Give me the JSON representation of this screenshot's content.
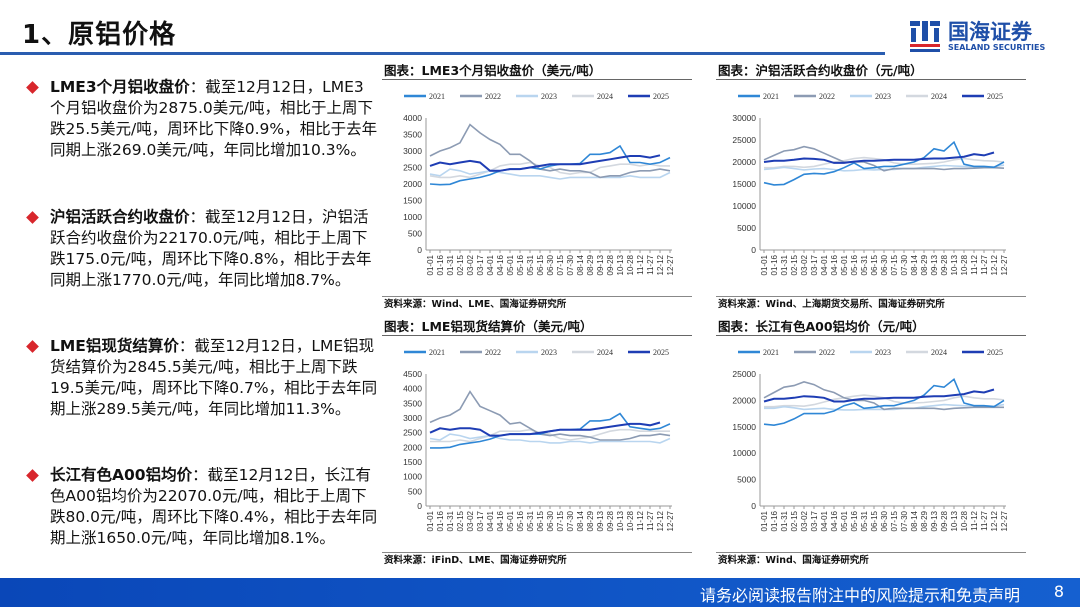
{
  "header": {
    "title": "1、原铝价格",
    "logo_cn": "国海证券",
    "logo_en": "SEALAND SECURITIES"
  },
  "blocks": [
    {
      "label": "LME3个月铝收盘价",
      "text": "：截至12月12日，LME3个月铝收盘价为2875.0美元/吨，相比于上周下跌25.5美元/吨，周环比下降0.9%，相比于去年同期上涨269.0美元/吨，年同比增加10.3%。"
    },
    {
      "label": "沪铝活跃合约收盘价",
      "text": "：截至12月12日，沪铝活跃合约收盘价为22170.0元/吨，相比于上周下跌175.0元/吨，周环比下降0.8%，相比于去年同期上涨1770.0元/吨，年同比增加8.7%。"
    },
    {
      "label": "LME铝现货结算价",
      "text": "：截至12月12日，LME铝现货结算价为2845.5美元/吨，相比于上周下跌19.5美元/吨，周环比下降0.7%，相比于去年同期上涨289.5美元/吨，年同比增加11.3%。"
    },
    {
      "label": "长江有色A00铝均价",
      "text": "：截至12月12日，长江有色A00铝均价为22070.0元/吨，相比于上周下跌80.0元/吨，周环比下降0.4%，相比于去年同期上涨1650.0元/吨，年同比增加8.1%。"
    }
  ],
  "colors": {
    "2021": "#2f87d6",
    "2022": "#8c9bb3",
    "2023": "#b9d5ef",
    "2024": "#d3d8df",
    "2025": "#1e3db4"
  },
  "chart_data": [
    {
      "type": "line",
      "title": "图表：LME3个月铝收盘价（美元/吨）",
      "source": "资料来源：Wind、LME、国海证券研究所",
      "ylim": [
        0,
        4000
      ],
      "ystep": 500,
      "x": [
        "01-01",
        "01-16",
        "01-31",
        "02-15",
        "03-02",
        "03-17",
        "04-01",
        "04-16",
        "05-01",
        "05-16",
        "05-31",
        "06-15",
        "06-30",
        "07-15",
        "07-30",
        "08-14",
        "08-29",
        "09-13",
        "09-28",
        "10-13",
        "10-28",
        "11-12",
        "11-27",
        "12-12",
        "12-27"
      ],
      "series": [
        {
          "name": "2021",
          "values": [
            2000,
            1980,
            1990,
            2100,
            2150,
            2200,
            2280,
            2400,
            2450,
            2450,
            2500,
            2450,
            2550,
            2600,
            2600,
            2620,
            2900,
            2900,
            2950,
            3150,
            2650,
            2650,
            2600,
            2650,
            2800
          ]
        },
        {
          "name": "2022",
          "values": [
            2850,
            3000,
            3100,
            3250,
            3800,
            3550,
            3350,
            3200,
            2900,
            2900,
            2700,
            2450,
            2400,
            2450,
            2400,
            2400,
            2350,
            2200,
            2250,
            2250,
            2350,
            2400,
            2400,
            2450,
            2400
          ]
        },
        {
          "name": "2023",
          "values": [
            2300,
            2250,
            2450,
            2400,
            2300,
            2350,
            2400,
            2350,
            2300,
            2250,
            2250,
            2250,
            2200,
            2150,
            2200,
            2200,
            2200,
            2200,
            2200,
            2200,
            2250,
            2200,
            2200,
            2200,
            2350
          ]
        },
        {
          "name": "2024",
          "values": [
            2250,
            2200,
            2200,
            2250,
            2200,
            2300,
            2400,
            2550,
            2600,
            2600,
            2650,
            2550,
            2500,
            2350,
            2300,
            2350,
            2350,
            2500,
            2550,
            2600,
            2600,
            2550,
            2600,
            2550,
            2550
          ]
        },
        {
          "name": "2025",
          "values": [
            2550,
            2650,
            2600,
            2650,
            2700,
            2650,
            2400,
            2400,
            2450,
            2450,
            2500,
            2550,
            2600,
            2600,
            2600,
            2600,
            2650,
            2700,
            2750,
            2800,
            2850,
            2850,
            2800,
            2870,
            null
          ]
        }
      ]
    },
    {
      "type": "line",
      "title": "图表：沪铝活跃合约收盘价（元/吨）",
      "source": "资料来源：Wind、上海期货交易所、国海证券研究所",
      "ylim": [
        0,
        30000
      ],
      "ystep": 5000,
      "x": [
        "01-01",
        "01-16",
        "01-31",
        "02-15",
        "03-02",
        "03-17",
        "04-01",
        "04-16",
        "05-01",
        "05-16",
        "05-31",
        "06-15",
        "06-30",
        "07-15",
        "07-30",
        "08-14",
        "08-29",
        "09-13",
        "09-28",
        "10-13",
        "10-28",
        "11-12",
        "11-27",
        "12-12",
        "12-27"
      ],
      "series": [
        {
          "name": "2021",
          "values": [
            15300,
            14800,
            14900,
            16000,
            17200,
            17400,
            17300,
            17800,
            18700,
            19800,
            18500,
            18700,
            19000,
            19000,
            19500,
            20000,
            21000,
            23000,
            22500,
            24500,
            19500,
            19000,
            19000,
            18800,
            20000
          ]
        },
        {
          "name": "2022",
          "values": [
            20500,
            21500,
            22500,
            22800,
            23500,
            23000,
            22000,
            21000,
            20000,
            20000,
            20000,
            19200,
            18000,
            18500,
            18500,
            18500,
            18500,
            18500,
            18300,
            18500,
            18500,
            18600,
            18700,
            18700,
            18600
          ]
        },
        {
          "name": "2023",
          "values": [
            18300,
            18500,
            18800,
            18500,
            18200,
            18400,
            18500,
            18300,
            18000,
            18100,
            18300,
            18200,
            18300,
            18300,
            18500,
            18500,
            18800,
            19000,
            19200,
            19100,
            19000,
            19000,
            19000,
            18900,
            19300
          ]
        },
        {
          "name": "2024",
          "values": [
            18700,
            18700,
            19000,
            19000,
            18800,
            19000,
            19500,
            20000,
            20300,
            20800,
            21000,
            20800,
            20500,
            19800,
            19500,
            19500,
            19600,
            19700,
            20000,
            20500,
            20800,
            20500,
            20300,
            20200,
            20000
          ]
        },
        {
          "name": "2025",
          "values": [
            20000,
            20300,
            20300,
            20500,
            20800,
            20700,
            20500,
            19800,
            19800,
            20100,
            20300,
            20300,
            20400,
            20500,
            20500,
            20500,
            20700,
            20800,
            20800,
            21000,
            21200,
            21800,
            21500,
            22170,
            null
          ]
        }
      ]
    },
    {
      "type": "line",
      "title": "图表：LME铝现货结算价（美元/吨）",
      "source": "资料来源：iFinD、LME、国海证券研究所",
      "ylim": [
        0,
        4500
      ],
      "ystep": 500,
      "x": [
        "01-01",
        "01-16",
        "01-31",
        "02-15",
        "03-02",
        "03-17",
        "04-01",
        "04-16",
        "05-01",
        "05-16",
        "05-31",
        "06-15",
        "06-30",
        "07-15",
        "07-30",
        "08-14",
        "08-29",
        "09-13",
        "09-28",
        "10-13",
        "10-28",
        "11-12",
        "11-27",
        "12-12",
        "12-27"
      ],
      "series": [
        {
          "name": "2021",
          "values": [
            1980,
            1980,
            2000,
            2100,
            2150,
            2200,
            2280,
            2400,
            2450,
            2450,
            2450,
            2450,
            2550,
            2600,
            2600,
            2620,
            2900,
            2900,
            2950,
            3150,
            2700,
            2650,
            2600,
            2650,
            2800
          ]
        },
        {
          "name": "2022",
          "values": [
            2850,
            3000,
            3100,
            3300,
            3900,
            3400,
            3250,
            3100,
            2800,
            2850,
            2650,
            2450,
            2400,
            2450,
            2400,
            2400,
            2350,
            2250,
            2250,
            2250,
            2300,
            2400,
            2400,
            2450,
            2400
          ]
        },
        {
          "name": "2023",
          "values": [
            2300,
            2250,
            2450,
            2400,
            2300,
            2350,
            2400,
            2300,
            2250,
            2250,
            2200,
            2200,
            2150,
            2150,
            2200,
            2200,
            2150,
            2200,
            2200,
            2200,
            2200,
            2200,
            2200,
            2150,
            2300
          ]
        },
        {
          "name": "2024",
          "values": [
            2200,
            2200,
            2200,
            2250,
            2200,
            2300,
            2400,
            2550,
            2550,
            2550,
            2600,
            2500,
            2450,
            2300,
            2250,
            2300,
            2350,
            2450,
            2550,
            2600,
            2600,
            2550,
            2550,
            2550,
            2550
          ]
        },
        {
          "name": "2025",
          "values": [
            2500,
            2650,
            2600,
            2650,
            2650,
            2600,
            2400,
            2400,
            2450,
            2450,
            2450,
            2500,
            2550,
            2600,
            2600,
            2600,
            2600,
            2650,
            2700,
            2750,
            2800,
            2800,
            2750,
            2845,
            null
          ]
        }
      ]
    },
    {
      "type": "line",
      "title": "图表：长江有色A00铝均价（元/吨）",
      "source": "资料来源：Wind、国海证券研究所",
      "ylim": [
        0,
        25000
      ],
      "ystep": 5000,
      "x": [
        "01-01",
        "01-16",
        "01-31",
        "02-15",
        "03-02",
        "03-17",
        "04-01",
        "04-16",
        "05-01",
        "05-16",
        "05-31",
        "06-15",
        "06-30",
        "07-15",
        "07-30",
        "08-14",
        "08-29",
        "09-13",
        "09-28",
        "10-13",
        "10-28",
        "11-12",
        "11-27",
        "12-12",
        "12-27"
      ],
      "series": [
        {
          "name": "2021",
          "values": [
            15500,
            15300,
            15700,
            16500,
            17500,
            17500,
            17500,
            18000,
            19000,
            19500,
            18500,
            18700,
            19000,
            19000,
            19500,
            20000,
            21000,
            22800,
            22500,
            24000,
            19500,
            19000,
            19000,
            18800,
            20000
          ]
        },
        {
          "name": "2022",
          "values": [
            20500,
            21500,
            22500,
            22800,
            23500,
            23000,
            22000,
            21500,
            20500,
            20000,
            20000,
            19500,
            18300,
            18500,
            18500,
            18500,
            18500,
            18500,
            18300,
            18500,
            18600,
            18700,
            18700,
            18700,
            18700
          ]
        },
        {
          "name": "2023",
          "values": [
            18500,
            18500,
            18800,
            18600,
            18300,
            18400,
            18500,
            18300,
            18200,
            18200,
            18300,
            18300,
            18300,
            18300,
            18500,
            18500,
            18800,
            19000,
            19200,
            19100,
            19000,
            19000,
            19000,
            18900,
            19200
          ]
        },
        {
          "name": "2024",
          "values": [
            18800,
            18800,
            19000,
            19000,
            18900,
            19200,
            19700,
            20200,
            20500,
            20800,
            21000,
            20800,
            20500,
            19800,
            19500,
            19500,
            19600,
            19800,
            20000,
            20500,
            20800,
            20500,
            20300,
            20300,
            20100
          ]
        },
        {
          "name": "2025",
          "values": [
            19800,
            20300,
            20300,
            20500,
            20800,
            20700,
            20500,
            19800,
            19800,
            20100,
            20300,
            20300,
            20400,
            20500,
            20500,
            20500,
            20700,
            20800,
            20800,
            21000,
            21200,
            21700,
            21500,
            22070,
            null
          ]
        }
      ]
    }
  ],
  "footer": {
    "disclaimer": "请务必阅读报告附注中的风险提示和免责声明",
    "page": "8"
  }
}
